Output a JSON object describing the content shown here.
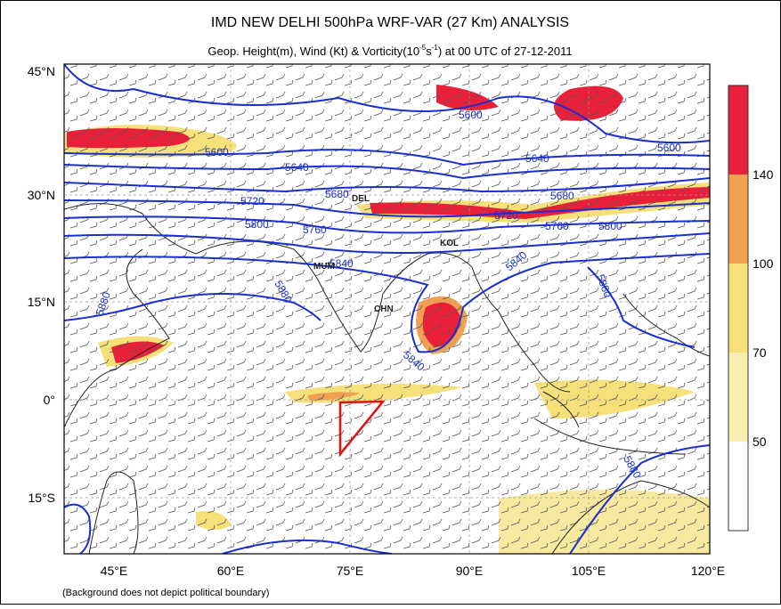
{
  "header": {
    "title": "IMD NEW DELHI 500hPa WRF-VAR (27 Km) ANALYSIS",
    "subtitle": [
      "Geop. Height(m), Wind (Kt) & Vorticity(10",
      "-5",
      "s",
      "-1",
      ") at 00 UTC of 27-12-2011"
    ]
  },
  "map": {
    "lat_labels": [
      "45°N",
      "30°N",
      "15°N",
      "0°",
      "15°S"
    ],
    "lon_labels": [
      "45°E",
      "60°E",
      "75°E",
      "90°E",
      "105°E",
      "120°E"
    ],
    "contour_labels": [
      "5600",
      "5600",
      "5600",
      "5640",
      "5640",
      "5680",
      "5680",
      "5720",
      "5720",
      "5760",
      "5760",
      "5800",
      "5800",
      "5840",
      "5840",
      "5840",
      "5880",
      "5880",
      "5880",
      "5880"
    ],
    "cities": [
      "DEL",
      "MUM",
      "CHN",
      "KOL"
    ]
  },
  "colorbar": {
    "labels": [
      "140",
      "100",
      "70",
      "50"
    ]
  },
  "footnote": "(Background does not depict political boundary)"
}
